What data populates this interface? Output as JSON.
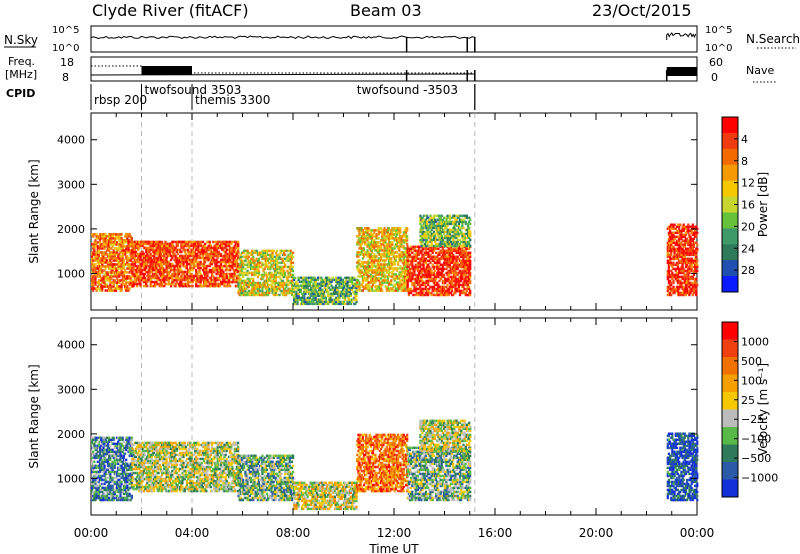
{
  "header": {
    "title": "Clyde River (fitACF)",
    "beam": "Beam 03",
    "date": "23/Oct/2015"
  },
  "top_panels": {
    "nsky_label": "N.Sky",
    "nsearch_label": "N.Search",
    "freq_label": "Freq.",
    "freq_unit": "[MHz]",
    "nave_label": "Nave",
    "cpid_label": "CPID",
    "nsky_ticks": [
      "10^5",
      "10^0"
    ],
    "nsearch_ticks": [
      "10^5",
      "10^0"
    ],
    "freq_ticks": [
      "18",
      "8"
    ],
    "nave_ticks": [
      "60",
      "0"
    ],
    "cpid_entries": [
      {
        "hour": 0.0,
        "label": "rbsp 200",
        "line": "top"
      },
      {
        "hour": 2.0,
        "label": "twofsound 3503",
        "line": "top"
      },
      {
        "hour": 4.0,
        "label": "themis 3300",
        "line": "mid"
      },
      {
        "hour": 15.2,
        "label": "twofsound -3503",
        "line": "top"
      }
    ]
  },
  "chart_data": [
    {
      "type": "heatmap",
      "title": "",
      "xlabel": "",
      "ylabel": "Slant Range [km]",
      "xlim_hours": [
        0,
        24
      ],
      "ylim": [
        180,
        4600
      ],
      "yticks": [
        1000,
        2000,
        3000,
        4000
      ],
      "colorbar": {
        "label": "Power [dB]",
        "ticks": [
          "4",
          "8",
          "12",
          "16",
          "20",
          "24",
          "28"
        ],
        "colors": [
          "#0a1cff",
          "#1f4fb0",
          "#2f7a5a",
          "#3f9a6a",
          "#66c23a",
          "#c8d630",
          "#f5c800",
          "#f59a00",
          "#f26a00",
          "#f03a10",
          "#ff0000"
        ]
      },
      "scatter_blocks": [
        {
          "t0": 0.0,
          "t1": 1.6,
          "r0": 600,
          "r1": 1900,
          "level": 0.75
        },
        {
          "t0": 1.6,
          "t1": 5.8,
          "r0": 700,
          "r1": 1700,
          "level": 0.85
        },
        {
          "t0": 5.8,
          "t1": 8.0,
          "r0": 500,
          "r1": 1500,
          "level": 0.55
        },
        {
          "t0": 8.0,
          "t1": 10.5,
          "r0": 300,
          "r1": 900,
          "level": 0.35
        },
        {
          "t0": 10.5,
          "t1": 12.5,
          "r0": 600,
          "r1": 2000,
          "level": 0.6
        },
        {
          "t0": 12.5,
          "t1": 15.0,
          "r0": 500,
          "r1": 1600,
          "level": 0.9
        },
        {
          "t0": 13.0,
          "t1": 15.0,
          "r0": 1600,
          "r1": 2300,
          "level": 0.4
        },
        {
          "t0": 22.8,
          "t1": 24.0,
          "r0": 500,
          "r1": 2100,
          "level": 0.9
        }
      ]
    },
    {
      "type": "heatmap",
      "title": "",
      "xlabel": "Time UT",
      "ylabel": "Slant Range [km]",
      "xlim_hours": [
        0,
        24
      ],
      "ylim": [
        180,
        4600
      ],
      "yticks": [
        1000,
        2000,
        3000,
        4000
      ],
      "xticks": [
        "00:00",
        "04:00",
        "08:00",
        "12:00",
        "16:00",
        "20:00",
        "00:00"
      ],
      "colorbar": {
        "label": "Velocity [m s⁻¹]",
        "ticks": [
          "1000",
          "500",
          "100",
          "25",
          "−25",
          "−100",
          "−500",
          "−1000"
        ],
        "colors": [
          "#1430d8",
          "#2a5aa8",
          "#2f7a5a",
          "#58b848",
          "#bcbcbc",
          "#f5c800",
          "#f5a000",
          "#f07000",
          "#f04010",
          "#ff0000"
        ]
      },
      "scatter_blocks": [
        {
          "t0": 0.0,
          "t1": 1.6,
          "r0": 500,
          "r1": 1900,
          "level": 0.25
        },
        {
          "t0": 1.6,
          "t1": 5.8,
          "r0": 700,
          "r1": 1800,
          "level": 0.45
        },
        {
          "t0": 5.8,
          "t1": 8.0,
          "r0": 500,
          "r1": 1500,
          "level": 0.35
        },
        {
          "t0": 8.0,
          "t1": 10.5,
          "r0": 300,
          "r1": 900,
          "level": 0.5
        },
        {
          "t0": 10.5,
          "t1": 12.5,
          "r0": 700,
          "r1": 2000,
          "level": 0.75
        },
        {
          "t0": 12.5,
          "t1": 15.0,
          "r0": 500,
          "r1": 1700,
          "level": 0.35
        },
        {
          "t0": 13.0,
          "t1": 15.0,
          "r0": 1600,
          "r1": 2300,
          "level": 0.45
        },
        {
          "t0": 22.8,
          "t1": 24.0,
          "r0": 500,
          "r1": 2000,
          "level": 0.1
        }
      ]
    }
  ]
}
